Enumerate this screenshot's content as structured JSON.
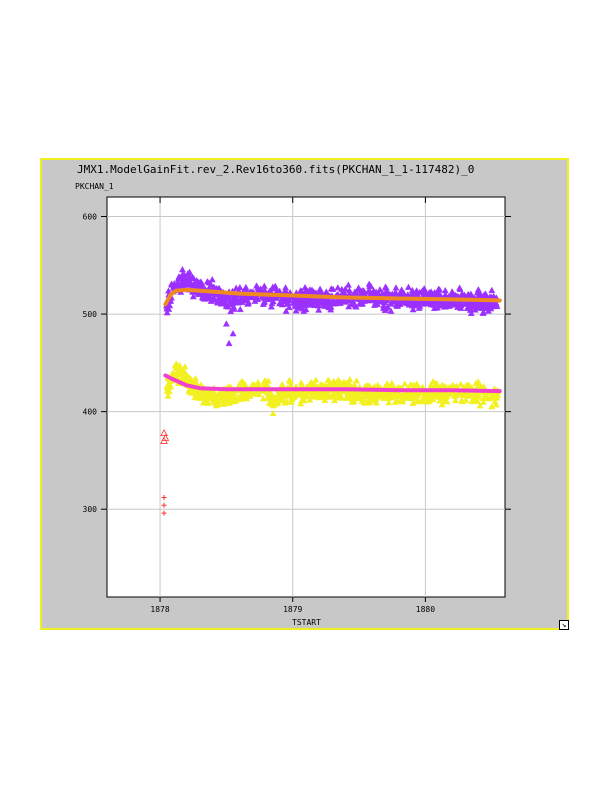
{
  "window": {
    "title": "JMX1.ModelGainFit.rev_2.Rev16to360.fits(PKCHAN_1_1-117482)_0",
    "resize_glyph": "↘",
    "frame_color": "#f0f020",
    "background_color": "#c8c8c8"
  },
  "chart_data": {
    "type": "scatter",
    "title": "JMX1.ModelGainFit.rev_2.Rev16to360.fits(PKCHAN_1_1-117482)_0",
    "xlabel": "TSTART",
    "ylabel": "PKCHAN_1",
    "xlim": [
      1877.6,
      1880.6
    ],
    "ylim": [
      210,
      620
    ],
    "xticks": [
      1878,
      1879,
      1880
    ],
    "xtick_labels": [
      "1878",
      "1879",
      "1880"
    ],
    "yticks": [
      300,
      400,
      500,
      600
    ],
    "ytick_labels": [
      "300",
      "400",
      "500",
      "600"
    ],
    "grid": true,
    "series": [
      {
        "marker": "triangle",
        "color": "#9b30ff",
        "base": [
          [
            1878.05,
            510
          ],
          [
            1878.1,
            525
          ],
          [
            1878.15,
            533
          ],
          [
            1878.2,
            534
          ],
          [
            1878.3,
            528
          ],
          [
            1878.4,
            522
          ],
          [
            1878.5,
            516
          ],
          [
            1878.6,
            515
          ],
          [
            1878.7,
            518
          ],
          [
            1878.8,
            520
          ],
          [
            1878.9,
            517
          ],
          [
            1879.0,
            514
          ],
          [
            1879.2,
            516
          ],
          [
            1879.4,
            518
          ],
          [
            1879.6,
            517
          ],
          [
            1879.8,
            515
          ],
          [
            1880.0,
            516
          ],
          [
            1880.2,
            514
          ],
          [
            1880.4,
            513
          ],
          [
            1880.55,
            513
          ]
        ],
        "outliers": [
          [
            1878.5,
            490
          ],
          [
            1878.55,
            480
          ],
          [
            1878.52,
            470
          ]
        ]
      },
      {
        "marker": "triangle",
        "color": "#f2f020",
        "base": [
          [
            1878.05,
            425
          ],
          [
            1878.1,
            435
          ],
          [
            1878.15,
            440
          ],
          [
            1878.2,
            432
          ],
          [
            1878.3,
            420
          ],
          [
            1878.4,
            415
          ],
          [
            1878.5,
            416
          ],
          [
            1878.6,
            420
          ],
          [
            1878.7,
            424
          ],
          [
            1878.8,
            425
          ],
          [
            1878.85,
            405
          ],
          [
            1878.9,
            416
          ],
          [
            1879.0,
            420
          ],
          [
            1879.2,
            422
          ],
          [
            1879.4,
            421
          ],
          [
            1879.6,
            420
          ],
          [
            1879.8,
            419
          ],
          [
            1880.0,
            418
          ],
          [
            1880.2,
            421
          ],
          [
            1880.4,
            420
          ],
          [
            1880.55,
            418
          ]
        ],
        "outliers": []
      },
      {
        "marker": "triangle-open",
        "color": "#ff3030",
        "base": [],
        "outliers": [
          [
            1878.03,
            378
          ],
          [
            1878.04,
            373
          ],
          [
            1878.03,
            370
          ]
        ]
      },
      {
        "marker": "plus",
        "color": "#ff3030",
        "base": [],
        "outliers": [
          [
            1878.03,
            312
          ],
          [
            1878.03,
            304
          ],
          [
            1878.03,
            296
          ]
        ]
      },
      {
        "marker": "line",
        "color": "#f08a20",
        "base": [
          [
            1878.04,
            510
          ],
          [
            1878.08,
            520
          ],
          [
            1878.12,
            524
          ],
          [
            1878.2,
            525
          ],
          [
            1878.4,
            523
          ],
          [
            1878.6,
            521
          ],
          [
            1878.8,
            520
          ],
          [
            1879.0,
            519
          ],
          [
            1879.4,
            517
          ],
          [
            1879.8,
            516
          ],
          [
            1880.2,
            515
          ],
          [
            1880.56,
            514
          ]
        ],
        "outliers": []
      },
      {
        "marker": "line",
        "color": "#f040d0",
        "base": [
          [
            1878.04,
            437
          ],
          [
            1878.1,
            433
          ],
          [
            1878.2,
            427
          ],
          [
            1878.3,
            424
          ],
          [
            1878.5,
            423
          ],
          [
            1878.8,
            423
          ],
          [
            1879.0,
            423
          ],
          [
            1879.4,
            423
          ],
          [
            1879.8,
            422
          ],
          [
            1880.2,
            422
          ],
          [
            1880.56,
            421
          ]
        ],
        "outliers": []
      }
    ]
  }
}
